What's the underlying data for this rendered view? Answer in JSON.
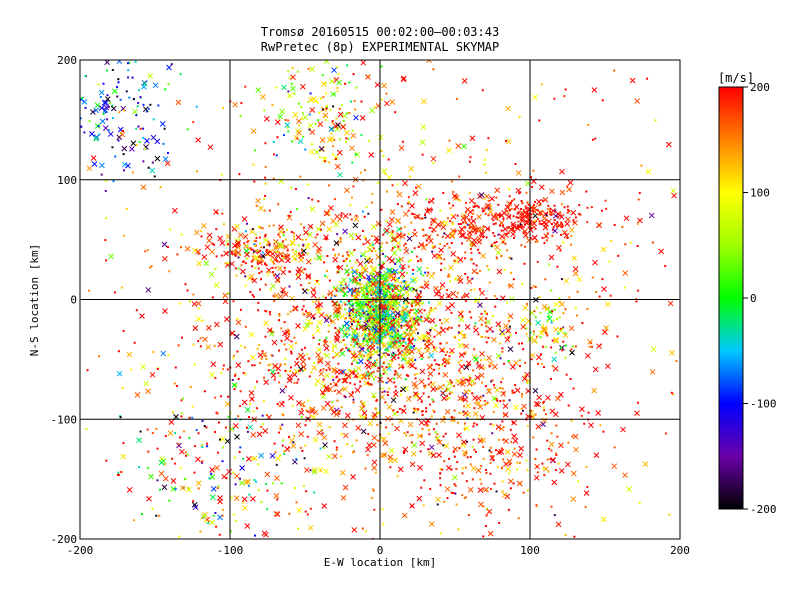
{
  "chart_data": {
    "type": "scatter",
    "title": "Tromsø 20160515 00:02:00–00:03:43",
    "subtitle": "RwPretec (8p) EXPERIMENTAL SKYMAP",
    "xlabel": "E-W location [km]",
    "ylabel": "N-S location [km]",
    "xlim": [
      -200,
      200
    ],
    "ylim": [
      -200,
      200
    ],
    "x_ticks": [
      "-200",
      "-100",
      "0",
      "100",
      "200"
    ],
    "y_ticks": [
      "-200",
      "-100",
      "0",
      "100",
      "200"
    ],
    "grid": true,
    "colorbar": {
      "label": "[m/s]",
      "min": -200,
      "max": 200,
      "ticks": [
        "-200",
        "-100",
        "0",
        "100",
        "200"
      ],
      "stops": [
        {
          "value": -200,
          "color": "#000000"
        },
        {
          "value": -150,
          "color": "#6a00a8"
        },
        {
          "value": -100,
          "color": "#0000ff"
        },
        {
          "value": -50,
          "color": "#00c8ff"
        },
        {
          "value": 0,
          "color": "#00ff00"
        },
        {
          "value": 50,
          "color": "#a0ff00"
        },
        {
          "value": 100,
          "color": "#ffff00"
        },
        {
          "value": 150,
          "color": "#ff8000"
        },
        {
          "value": 200,
          "color": "#ff0000"
        }
      ]
    },
    "marker_types": [
      "cross",
      "dot"
    ],
    "clusters": [
      {
        "x": 0,
        "y": -10,
        "sx": 12,
        "sy": 22,
        "n": 900,
        "v": 20,
        "sv": 70
      },
      {
        "x": 0,
        "y": -40,
        "sx": 55,
        "sy": 55,
        "n": 1100,
        "v": 170,
        "sv": 60
      },
      {
        "x": 60,
        "y": 60,
        "sx": 40,
        "sy": 15,
        "n": 260,
        "v": 190,
        "sv": 25
      },
      {
        "x": 100,
        "y": 70,
        "sx": 15,
        "sy": 8,
        "n": 160,
        "v": 195,
        "sv": 20
      },
      {
        "x": -80,
        "y": 40,
        "sx": 18,
        "sy": 10,
        "n": 200,
        "v": 160,
        "sv": 70
      },
      {
        "x": -170,
        "y": 160,
        "sx": 22,
        "sy": 30,
        "n": 160,
        "v": -80,
        "sv": 70
      },
      {
        "x": -40,
        "y": 160,
        "sx": 20,
        "sy": 25,
        "n": 150,
        "v": 80,
        "sv": 80
      },
      {
        "x": 80,
        "y": -120,
        "sx": 35,
        "sy": 40,
        "n": 260,
        "v": 185,
        "sv": 40
      },
      {
        "x": -110,
        "y": -140,
        "sx": 30,
        "sy": 40,
        "n": 200,
        "v": 60,
        "sv": 140
      },
      {
        "x": 110,
        "y": -20,
        "sx": 10,
        "sy": 15,
        "n": 60,
        "v": 60,
        "sv": 60
      },
      {
        "x": 0,
        "y": 0,
        "sx": 110,
        "sy": 110,
        "n": 900,
        "v": 170,
        "sv": 60
      }
    ]
  }
}
